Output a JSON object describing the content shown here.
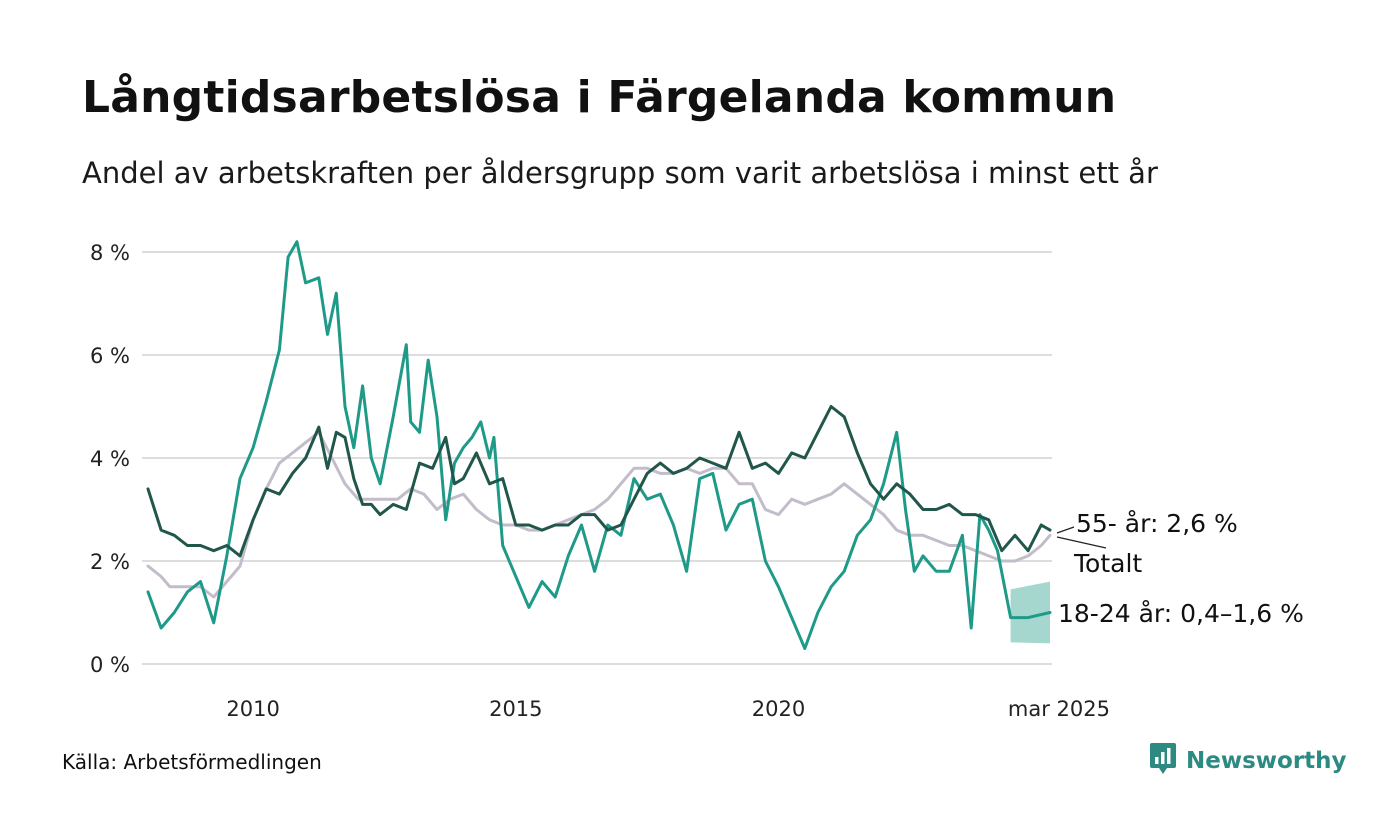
{
  "title": "Långtidsarbetslösa i Färgelanda kommun",
  "subtitle": "Andel av arbetskraften per åldersgrupp som varit arbetslösa i minst ett år",
  "source": "Källa: Arbetsförmedlingen",
  "brand": {
    "name": "Newsworthy",
    "icon": "bar-chart-speech-bubble-icon",
    "color": "#2c8a83"
  },
  "chart_data": {
    "type": "line",
    "title": "Långtidsarbetslösa i Färgelanda kommun",
    "subtitle": "Andel av arbetskraften per åldersgrupp som varit arbetslösa i minst ett år",
    "x_ticks": [
      {
        "date": "2010-01",
        "label": "2010"
      },
      {
        "date": "2015-01",
        "label": "2015"
      },
      {
        "date": "2020-01",
        "label": "2020"
      },
      {
        "date": "2025-03",
        "label": "mar 2025"
      }
    ],
    "y_ticks": [
      {
        "value": 0,
        "label": "0 %"
      },
      {
        "value": 2,
        "label": "2 %"
      },
      {
        "value": 4,
        "label": "4 %"
      },
      {
        "value": 6,
        "label": "6 %"
      },
      {
        "value": 8,
        "label": "8 %"
      }
    ],
    "xlim": [
      "2008-01",
      "2025-03"
    ],
    "ylim": [
      0,
      8.3
    ],
    "grid": true,
    "legend": "inline labels at line ends (right)",
    "series": [
      {
        "id": "total",
        "label": "Totalt",
        "color": "#c3bccb",
        "points": [
          [
            "2008-01",
            1.9
          ],
          [
            "2008-04",
            1.7
          ],
          [
            "2008-06",
            1.5
          ],
          [
            "2008-09",
            1.5
          ],
          [
            "2009-01",
            1.5
          ],
          [
            "2009-04",
            1.3
          ],
          [
            "2009-07",
            1.6
          ],
          [
            "2009-10",
            1.9
          ],
          [
            "2010-01",
            2.8
          ],
          [
            "2010-04",
            3.4
          ],
          [
            "2010-07",
            3.9
          ],
          [
            "2010-10",
            4.1
          ],
          [
            "2011-01",
            4.3
          ],
          [
            "2011-04",
            4.5
          ],
          [
            "2011-07",
            4.0
          ],
          [
            "2011-10",
            3.5
          ],
          [
            "2012-01",
            3.2
          ],
          [
            "2012-04",
            3.2
          ],
          [
            "2012-07",
            3.2
          ],
          [
            "2012-10",
            3.2
          ],
          [
            "2013-01",
            3.4
          ],
          [
            "2013-04",
            3.3
          ],
          [
            "2013-07",
            3.0
          ],
          [
            "2013-10",
            3.2
          ],
          [
            "2014-01",
            3.3
          ],
          [
            "2014-04",
            3.0
          ],
          [
            "2014-07",
            2.8
          ],
          [
            "2014-10",
            2.7
          ],
          [
            "2015-01",
            2.7
          ],
          [
            "2015-04",
            2.6
          ],
          [
            "2015-07",
            2.6
          ],
          [
            "2015-10",
            2.7
          ],
          [
            "2016-01",
            2.8
          ],
          [
            "2016-04",
            2.9
          ],
          [
            "2016-07",
            3.0
          ],
          [
            "2016-10",
            3.2
          ],
          [
            "2017-01",
            3.5
          ],
          [
            "2017-04",
            3.8
          ],
          [
            "2017-07",
            3.8
          ],
          [
            "2017-10",
            3.7
          ],
          [
            "2018-01",
            3.7
          ],
          [
            "2018-04",
            3.8
          ],
          [
            "2018-07",
            3.7
          ],
          [
            "2018-10",
            3.8
          ],
          [
            "2019-01",
            3.8
          ],
          [
            "2019-04",
            3.5
          ],
          [
            "2019-07",
            3.5
          ],
          [
            "2019-10",
            3.0
          ],
          [
            "2020-01",
            2.9
          ],
          [
            "2020-04",
            3.2
          ],
          [
            "2020-07",
            3.1
          ],
          [
            "2020-10",
            3.2
          ],
          [
            "2021-01",
            3.3
          ],
          [
            "2021-04",
            3.5
          ],
          [
            "2021-07",
            3.3
          ],
          [
            "2021-10",
            3.1
          ],
          [
            "2022-01",
            2.9
          ],
          [
            "2022-04",
            2.6
          ],
          [
            "2022-07",
            2.5
          ],
          [
            "2022-10",
            2.5
          ],
          [
            "2023-01",
            2.4
          ],
          [
            "2023-04",
            2.3
          ],
          [
            "2023-07",
            2.3
          ],
          [
            "2023-10",
            2.2
          ],
          [
            "2024-01",
            2.1
          ],
          [
            "2024-04",
            2.0
          ],
          [
            "2024-07",
            2.0
          ],
          [
            "2024-10",
            2.1
          ],
          [
            "2025-01",
            2.3
          ],
          [
            "2025-03",
            2.5
          ]
        ]
      },
      {
        "id": "age18_24",
        "label": "18-24 år",
        "color": "#1f9a88",
        "points": [
          [
            "2008-01",
            1.4
          ],
          [
            "2008-04",
            0.7
          ],
          [
            "2008-07",
            1.0
          ],
          [
            "2008-10",
            1.4
          ],
          [
            "2009-01",
            1.6
          ],
          [
            "2009-04",
            0.8
          ],
          [
            "2009-07",
            2.1
          ],
          [
            "2009-10",
            3.6
          ],
          [
            "2010-01",
            4.2
          ],
          [
            "2010-04",
            5.1
          ],
          [
            "2010-07",
            6.1
          ],
          [
            "2010-09",
            7.9
          ],
          [
            "2010-11",
            8.2
          ],
          [
            "2011-01",
            7.4
          ],
          [
            "2011-04",
            7.5
          ],
          [
            "2011-06",
            6.4
          ],
          [
            "2011-08",
            7.2
          ],
          [
            "2011-10",
            5.0
          ],
          [
            "2011-12",
            4.2
          ],
          [
            "2012-02",
            5.4
          ],
          [
            "2012-04",
            4.0
          ],
          [
            "2012-06",
            3.5
          ],
          [
            "2012-09",
            4.8
          ],
          [
            "2012-12",
            6.2
          ],
          [
            "2013-01",
            4.7
          ],
          [
            "2013-03",
            4.5
          ],
          [
            "2013-05",
            5.9
          ],
          [
            "2013-07",
            4.8
          ],
          [
            "2013-09",
            2.8
          ],
          [
            "2013-11",
            3.9
          ],
          [
            "2014-01",
            4.2
          ],
          [
            "2014-03",
            4.4
          ],
          [
            "2014-05",
            4.7
          ],
          [
            "2014-07",
            4.0
          ],
          [
            "2014-08",
            4.4
          ],
          [
            "2014-10",
            2.3
          ],
          [
            "2015-01",
            1.7
          ],
          [
            "2015-04",
            1.1
          ],
          [
            "2015-07",
            1.6
          ],
          [
            "2015-10",
            1.3
          ],
          [
            "2016-01",
            2.1
          ],
          [
            "2016-04",
            2.7
          ],
          [
            "2016-07",
            1.8
          ],
          [
            "2016-10",
            2.7
          ],
          [
            "2017-01",
            2.5
          ],
          [
            "2017-04",
            3.6
          ],
          [
            "2017-07",
            3.2
          ],
          [
            "2017-10",
            3.3
          ],
          [
            "2018-01",
            2.7
          ],
          [
            "2018-04",
            1.8
          ],
          [
            "2018-07",
            3.6
          ],
          [
            "2018-10",
            3.7
          ],
          [
            "2019-01",
            2.6
          ],
          [
            "2019-04",
            3.1
          ],
          [
            "2019-07",
            3.2
          ],
          [
            "2019-10",
            2.0
          ],
          [
            "2020-01",
            1.5
          ],
          [
            "2020-04",
            0.9
          ],
          [
            "2020-07",
            0.3
          ],
          [
            "2020-10",
            1.0
          ],
          [
            "2021-01",
            1.5
          ],
          [
            "2021-04",
            1.8
          ],
          [
            "2021-07",
            2.5
          ],
          [
            "2021-10",
            2.8
          ],
          [
            "2022-01",
            3.5
          ],
          [
            "2022-04",
            4.5
          ],
          [
            "2022-06",
            3.0
          ],
          [
            "2022-08",
            1.8
          ],
          [
            "2022-10",
            2.1
          ],
          [
            "2023-01",
            1.8
          ],
          [
            "2023-04",
            1.8
          ],
          [
            "2023-07",
            2.5
          ],
          [
            "2023-09",
            0.7
          ],
          [
            "2023-11",
            2.9
          ],
          [
            "2024-01",
            2.6
          ],
          [
            "2024-03",
            2.2
          ],
          [
            "2024-06",
            0.9
          ],
          [
            "2024-10",
            0.9
          ],
          [
            "2025-03",
            1.0
          ]
        ],
        "estimate_band": {
          "from": "2024-06",
          "to": "2025-03",
          "lower": 0.4,
          "upper": 1.6,
          "color": "#1f9a88"
        }
      },
      {
        "id": "age55",
        "label": "55- år",
        "color": "#21564b",
        "points": [
          [
            "2008-01",
            3.4
          ],
          [
            "2008-04",
            2.6
          ],
          [
            "2008-07",
            2.5
          ],
          [
            "2008-10",
            2.3
          ],
          [
            "2009-01",
            2.3
          ],
          [
            "2009-04",
            2.2
          ],
          [
            "2009-07",
            2.3
          ],
          [
            "2009-10",
            2.1
          ],
          [
            "2010-01",
            2.8
          ],
          [
            "2010-04",
            3.4
          ],
          [
            "2010-07",
            3.3
          ],
          [
            "2010-10",
            3.7
          ],
          [
            "2011-01",
            4.0
          ],
          [
            "2011-04",
            4.6
          ],
          [
            "2011-06",
            3.8
          ],
          [
            "2011-08",
            4.5
          ],
          [
            "2011-10",
            4.4
          ],
          [
            "2011-12",
            3.6
          ],
          [
            "2012-02",
            3.1
          ],
          [
            "2012-04",
            3.1
          ],
          [
            "2012-06",
            2.9
          ],
          [
            "2012-09",
            3.1
          ],
          [
            "2012-12",
            3.0
          ],
          [
            "2013-03",
            3.9
          ],
          [
            "2013-06",
            3.8
          ],
          [
            "2013-09",
            4.4
          ],
          [
            "2013-11",
            3.5
          ],
          [
            "2014-01",
            3.6
          ],
          [
            "2014-04",
            4.1
          ],
          [
            "2014-07",
            3.5
          ],
          [
            "2014-10",
            3.6
          ],
          [
            "2015-01",
            2.7
          ],
          [
            "2015-04",
            2.7
          ],
          [
            "2015-07",
            2.6
          ],
          [
            "2015-10",
            2.7
          ],
          [
            "2016-01",
            2.7
          ],
          [
            "2016-04",
            2.9
          ],
          [
            "2016-07",
            2.9
          ],
          [
            "2016-10",
            2.6
          ],
          [
            "2017-01",
            2.7
          ],
          [
            "2017-04",
            3.2
          ],
          [
            "2017-07",
            3.7
          ],
          [
            "2017-10",
            3.9
          ],
          [
            "2018-01",
            3.7
          ],
          [
            "2018-04",
            3.8
          ],
          [
            "2018-07",
            4.0
          ],
          [
            "2018-10",
            3.9
          ],
          [
            "2019-01",
            3.8
          ],
          [
            "2019-04",
            4.5
          ],
          [
            "2019-07",
            3.8
          ],
          [
            "2019-10",
            3.9
          ],
          [
            "2020-01",
            3.7
          ],
          [
            "2020-04",
            4.1
          ],
          [
            "2020-07",
            4.0
          ],
          [
            "2020-10",
            4.5
          ],
          [
            "2021-01",
            5.0
          ],
          [
            "2021-04",
            4.8
          ],
          [
            "2021-07",
            4.1
          ],
          [
            "2021-10",
            3.5
          ],
          [
            "2022-01",
            3.2
          ],
          [
            "2022-04",
            3.5
          ],
          [
            "2022-07",
            3.3
          ],
          [
            "2022-10",
            3.0
          ],
          [
            "2023-01",
            3.0
          ],
          [
            "2023-04",
            3.1
          ],
          [
            "2023-07",
            2.9
          ],
          [
            "2023-10",
            2.9
          ],
          [
            "2024-01",
            2.8
          ],
          [
            "2024-04",
            2.2
          ],
          [
            "2024-07",
            2.5
          ],
          [
            "2024-10",
            2.2
          ],
          [
            "2025-01",
            2.7
          ],
          [
            "2025-03",
            2.6
          ]
        ]
      }
    ],
    "annotations": [
      {
        "series": "age55",
        "text": "55- år: 2,6 %"
      },
      {
        "series": "total",
        "text": "Totalt"
      },
      {
        "series": "age18_24",
        "text": "18-24 år: 0,4–1,6 %"
      }
    ]
  }
}
